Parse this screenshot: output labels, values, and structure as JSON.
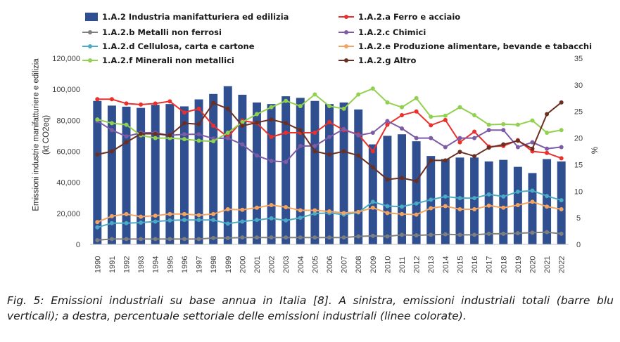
{
  "chart_data": {
    "type": "bar+line",
    "categories": [
      "1990",
      "1991",
      "1992",
      "1993",
      "1994",
      "1995",
      "1996",
      "1997",
      "1998",
      "1999",
      "2000",
      "2001",
      "2002",
      "2003",
      "2004",
      "2005",
      "2006",
      "2007",
      "2008",
      "2009",
      "2010",
      "2011",
      "2012",
      "2013",
      "2014",
      "2015",
      "2016",
      "2017",
      "2018",
      "2019",
      "2020",
      "2021",
      "2022"
    ],
    "bar_series": {
      "name": "1.A.2 Industria manifatturiera ed edilizia",
      "color": "#2f4f91",
      "values": [
        92500,
        89500,
        88800,
        88000,
        90000,
        90500,
        89000,
        93500,
        97000,
        102000,
        96500,
        91500,
        90500,
        95500,
        94500,
        92500,
        90500,
        91500,
        87000,
        64500,
        70000,
        71000,
        66500,
        57000,
        55000,
        56000,
        56000,
        53500,
        54500,
        50000,
        46000,
        55000,
        53500
      ]
    },
    "line_series": [
      {
        "name": "1.A.2.a Ferro e acciaio",
        "color": "#e8302c",
        "values": [
          27.3,
          27.3,
          26.5,
          26.3,
          26.5,
          26.9,
          24.8,
          25.5,
          22.3,
          20.2,
          23.3,
          22.8,
          20.2,
          21.0,
          21.0,
          21.0,
          23.0,
          21.5,
          20.7,
          17.5,
          22.5,
          24.3,
          25.0,
          22.4,
          23.4,
          19.2,
          21.2,
          18.4,
          18.5,
          19.6,
          17.5,
          17.2,
          16.2
        ]
      },
      {
        "name": "1.A.2.b Metalli non ferrosi",
        "color": "#7f7f7f",
        "values": [
          0.8,
          1.0,
          1.0,
          1.0,
          1.0,
          1.0,
          1.0,
          1.0,
          1.2,
          1.2,
          1.3,
          1.3,
          1.3,
          1.3,
          1.3,
          1.3,
          1.3,
          1.3,
          1.5,
          1.6,
          1.5,
          1.8,
          1.7,
          1.8,
          1.9,
          1.8,
          1.8,
          2.0,
          2.0,
          2.1,
          2.2,
          2.3,
          2.0
        ]
      },
      {
        "name": "1.A.2.c Chimici",
        "color": "#7d5ba6",
        "values": [
          23.2,
          21.5,
          20.3,
          21.0,
          21.0,
          20.5,
          20.7,
          20.7,
          19.9,
          20.0,
          18.8,
          16.7,
          15.7,
          15.5,
          18.5,
          18.5,
          20.2,
          21.7,
          20.5,
          21.0,
          23.2,
          21.8,
          20.0,
          20.0,
          18.3,
          20.0,
          20.0,
          21.5,
          21.5,
          18.3,
          19.2,
          18.0,
          18.3
        ]
      },
      {
        "name": "1.A.2.d Cellulosa, carta e cartone",
        "color": "#4baac6",
        "values": [
          3.2,
          4.0,
          4.0,
          4.1,
          4.3,
          4.5,
          4.6,
          4.6,
          4.6,
          3.9,
          4.3,
          4.6,
          4.9,
          4.5,
          5.0,
          5.8,
          5.9,
          5.6,
          6.0,
          8.0,
          7.2,
          7.1,
          7.7,
          8.4,
          9.0,
          8.7,
          8.7,
          9.4,
          9.0,
          9.9,
          10.1,
          9.1,
          8.3
        ]
      },
      {
        "name": "1.A.2.e Produzione alimentare, bevande e tabacchi",
        "color": "#f4a460",
        "values": [
          4.2,
          5.3,
          5.7,
          5.2,
          5.4,
          5.7,
          5.7,
          5.5,
          5.7,
          6.6,
          6.5,
          6.9,
          7.4,
          7.0,
          6.4,
          6.4,
          6.2,
          5.9,
          6.1,
          6.9,
          5.9,
          5.7,
          5.6,
          6.8,
          7.2,
          6.6,
          6.6,
          7.3,
          6.9,
          7.4,
          8.0,
          7.1,
          6.6
        ]
      },
      {
        "name": "1.A.2.f Minerali non metallici",
        "color": "#92d050",
        "values": [
          23.5,
          22.8,
          22.5,
          20.5,
          20.0,
          20.0,
          19.8,
          19.5,
          19.4,
          21.0,
          23.0,
          24.5,
          25.8,
          27.0,
          26.0,
          28.2,
          26.0,
          25.5,
          28.2,
          29.3,
          26.7,
          25.8,
          27.5,
          24.0,
          24.2,
          25.8,
          24.3,
          22.5,
          22.6,
          22.5,
          23.3,
          21.0,
          21.5
        ]
      },
      {
        "name": "1.A.2.g Altro",
        "color": "#6b2f22",
        "values": [
          16.9,
          17.5,
          19.2,
          20.8,
          20.8,
          20.5,
          22.8,
          22.6,
          26.6,
          25.5,
          22.3,
          22.9,
          23.5,
          22.8,
          21.5,
          17.5,
          16.9,
          17.5,
          16.7,
          14.5,
          12.2,
          12.5,
          11.9,
          15.8,
          15.8,
          17.4,
          16.6,
          18.2,
          18.8,
          19.5,
          18.0,
          24.5,
          26.7
        ]
      }
    ],
    "ylabel_left": "Emissioni industrie manifatturiere e edilizia (kt CO2eq)",
    "ylabel_right": "%",
    "ylim_left": [
      0,
      120000
    ],
    "ylim_right": [
      0,
      35
    ],
    "yticks_left": [
      "0",
      "20,000",
      "40,000",
      "60,000",
      "80,000",
      "100,000",
      "120,000"
    ],
    "yticks_right": [
      "0",
      "5",
      "10",
      "15",
      "20",
      "25",
      "30",
      "35"
    ],
    "legend_placement": "top",
    "grid": false
  },
  "caption": "Fig. 5: Emissioni industriali su base annua in Italia [8]. A sinistra, emissioni industriali totali (barre blu verticali); a destra, percentuale settoriale delle emissioni industriali (linee colorate)."
}
